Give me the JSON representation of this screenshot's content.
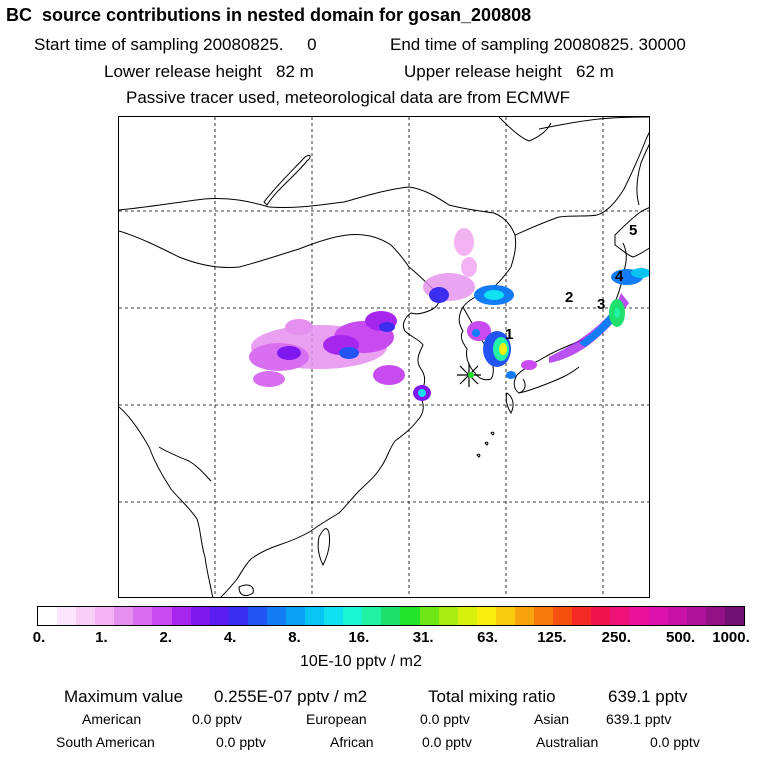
{
  "header": {
    "title": "BC  source contributions in nested domain for gosan_200808",
    "start_label": "Start time of sampling 20080825.     0",
    "end_label": "End time of sampling 20080825. 30000",
    "lower_label": "Lower release height   82 m",
    "upper_label": "Upper release height   62 m",
    "tracer_note": "Passive tracer used, meteorological data are from ECMWF"
  },
  "map": {
    "region_labels": [
      "1",
      "2",
      "3",
      "4",
      "5"
    ],
    "receptor_icon": "asterisk-marker-icon"
  },
  "colorbar": {
    "colors": [
      "#ffffff",
      "#fde6fd",
      "#f9cff9",
      "#f3b3f3",
      "#e58fef",
      "#d86ff0",
      "#c74bef",
      "#a726ee",
      "#7f18ee",
      "#5a1ff0",
      "#3b2ef0",
      "#2453f3",
      "#127cf5",
      "#0aa0f4",
      "#08c4f2",
      "#10e0f0",
      "#1af5d4",
      "#22f2a4",
      "#1fe06c",
      "#22e22c",
      "#6ee616",
      "#a8ec12",
      "#d8f00e",
      "#f7f00e",
      "#f9cc0e",
      "#f9a40e",
      "#f77a0e",
      "#f5500e",
      "#f42a26",
      "#f0124c",
      "#ee1276",
      "#ea1298",
      "#dd12aa",
      "#c812a6",
      "#ad1298",
      "#921286",
      "#701070"
    ],
    "tick_labels": [
      "0.",
      "1.",
      "2.",
      "4.",
      "8.",
      "16.",
      "31.",
      "63.",
      "125.",
      "250.",
      "500.",
      "1000."
    ],
    "units": "10E-10 pptv / m2"
  },
  "summary": {
    "max_label": "Maximum value",
    "max_value": "0.255E-07 pptv / m2",
    "total_label": "Total mixing ratio",
    "total_value": "639.1 pptv",
    "contributions": [
      {
        "name": "American",
        "value": "0.0 pptv"
      },
      {
        "name": "European",
        "value": "0.0 pptv"
      },
      {
        "name": "Asian",
        "value": "639.1 pptv"
      },
      {
        "name": "South American",
        "value": "0.0 pptv"
      },
      {
        "name": "African",
        "value": "0.0 pptv"
      },
      {
        "name": "Australian",
        "value": "0.0 pptv"
      }
    ]
  }
}
